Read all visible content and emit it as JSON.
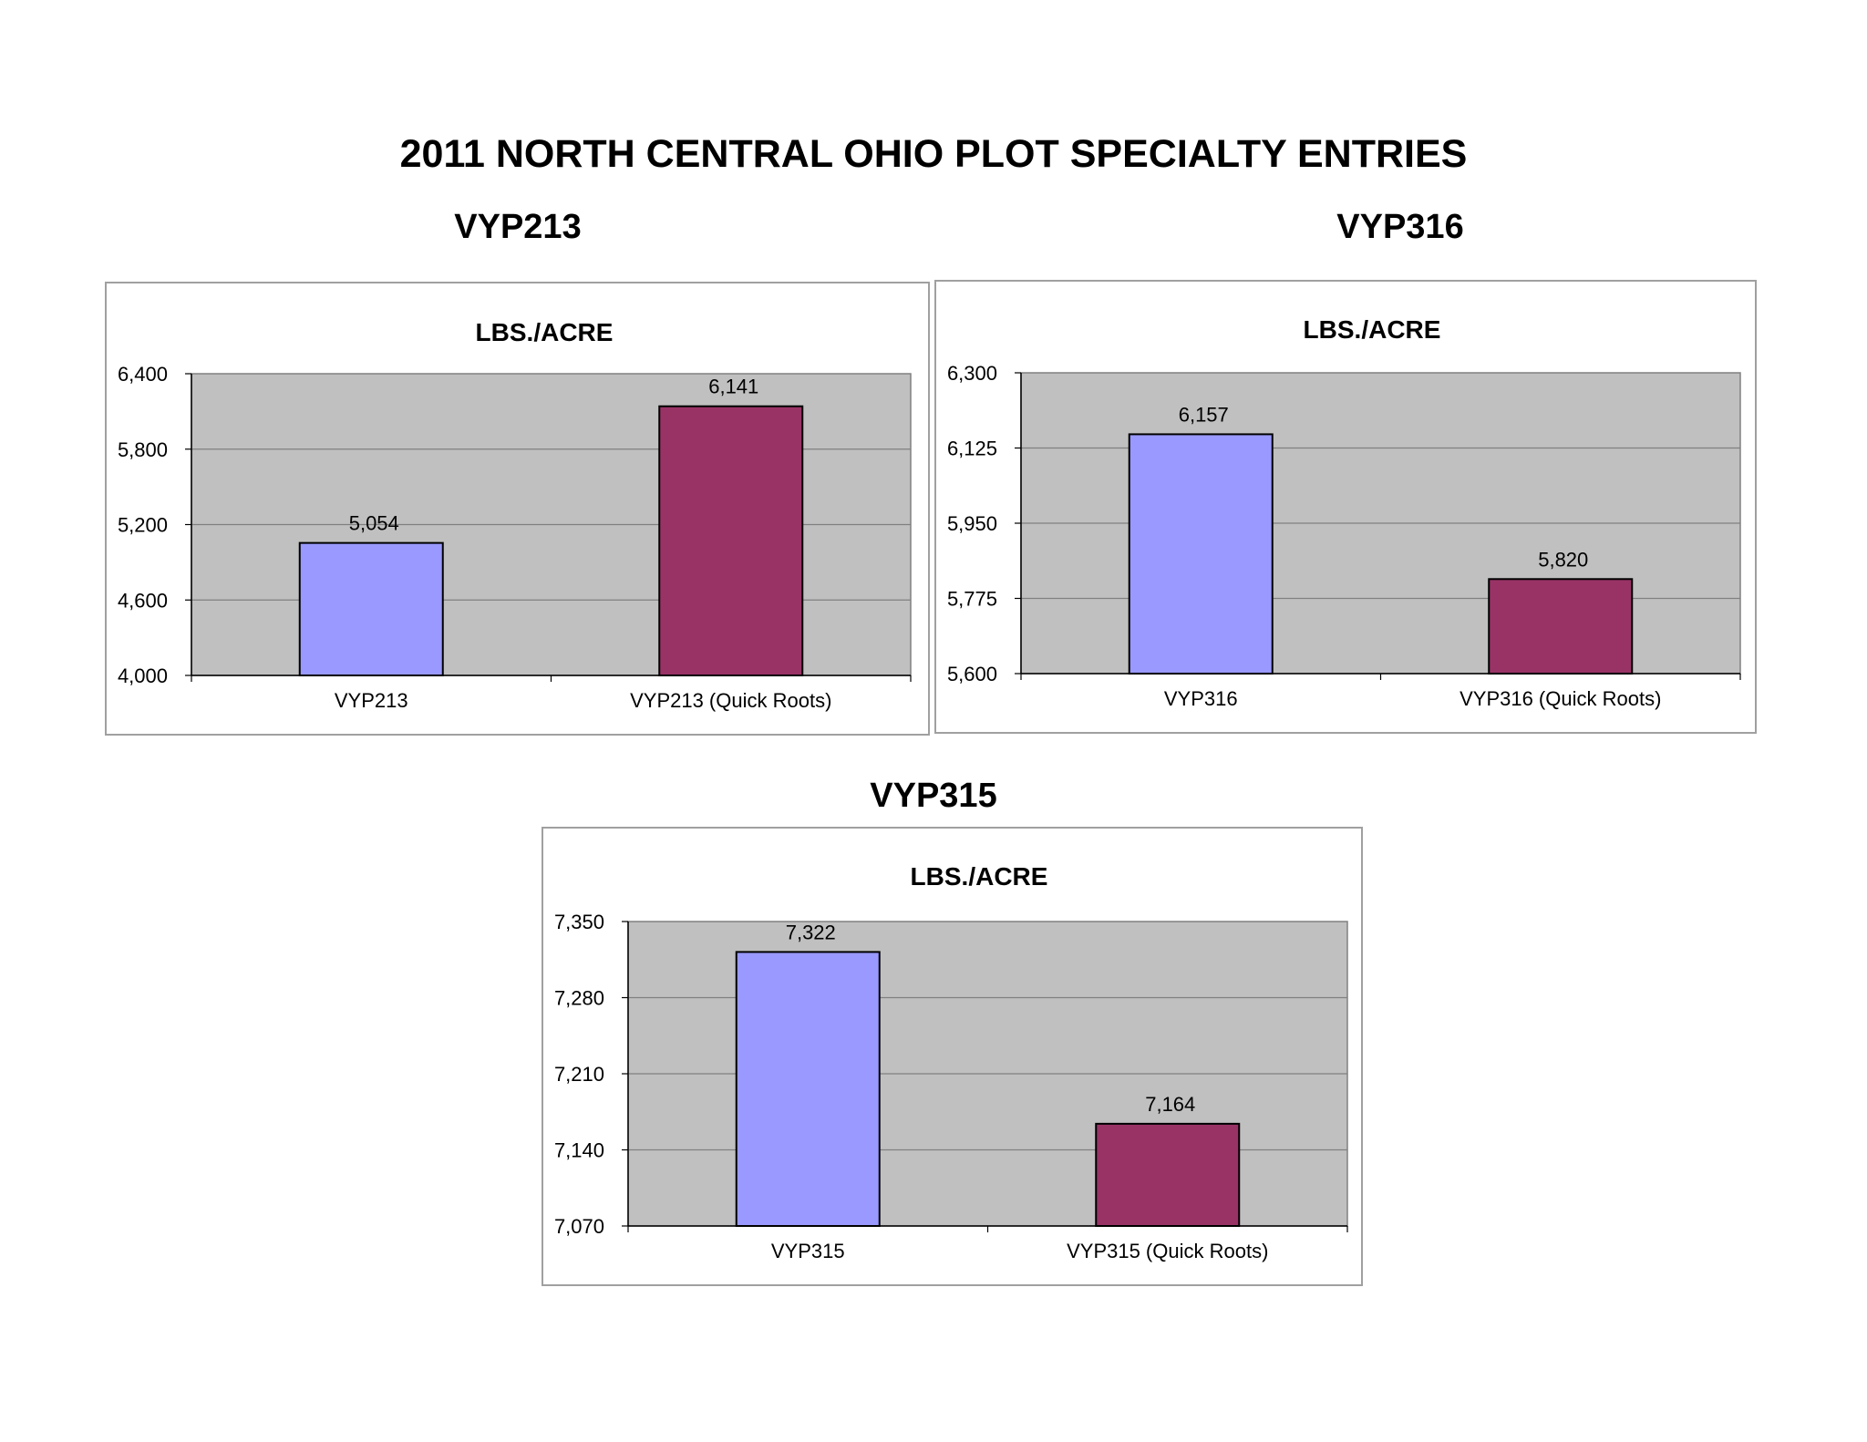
{
  "page": {
    "title": "2011 NORTH CENTRAL OHIO PLOT SPECIALTY ENTRIES"
  },
  "colors": {
    "plot_background": "#c0c0c0",
    "gridline": "#808080",
    "bar_standard": "#9999ff",
    "bar_quick_roots": "#993366",
    "bar_outline": "#000000",
    "frame_border": "#a0a0a0"
  },
  "charts": [
    {
      "section_title": "VYP213",
      "chart_title": "LBS./ACRE",
      "tick_labels": [
        "6,400",
        "5,800",
        "5,200",
        "4,600",
        "4,000"
      ]
    },
    {
      "section_title": "VYP316",
      "chart_title": "LBS./ACRE",
      "tick_labels": [
        "6,300",
        "6,125",
        "5,950",
        "5,775",
        "5,600"
      ]
    },
    {
      "section_title": "VYP315",
      "chart_title": "LBS./ACRE",
      "tick_labels": [
        "7,350",
        "7,280",
        "7,210",
        "7,140",
        "7,070"
      ]
    }
  ],
  "chart_data": [
    {
      "type": "bar",
      "title": "LBS./ACRE",
      "categories": [
        "VYP213",
        "VYP213 (Quick Roots)"
      ],
      "values": [
        5054,
        6141
      ],
      "value_labels": [
        "5,054",
        "6,141"
      ],
      "ylim": [
        4000,
        6400
      ],
      "yticks": [
        4000,
        4600,
        5200,
        5800,
        6400
      ],
      "grid": true,
      "legend": "none"
    },
    {
      "type": "bar",
      "title": "LBS./ACRE",
      "categories": [
        "VYP316",
        "VYP316 (Quick Roots)"
      ],
      "values": [
        6157,
        5820
      ],
      "value_labels": [
        "6,157",
        "5,820"
      ],
      "ylim": [
        5600,
        6300
      ],
      "yticks": [
        5600,
        5775,
        5950,
        6125,
        6300
      ],
      "grid": true,
      "legend": "none"
    },
    {
      "type": "bar",
      "title": "LBS./ACRE",
      "categories": [
        "VYP315",
        "VYP315 (Quick Roots)"
      ],
      "values": [
        7322,
        7164
      ],
      "value_labels": [
        "7,322",
        "7,164"
      ],
      "ylim": [
        7070,
        7350
      ],
      "yticks": [
        7070,
        7140,
        7210,
        7280,
        7350
      ],
      "grid": true,
      "legend": "none"
    }
  ]
}
